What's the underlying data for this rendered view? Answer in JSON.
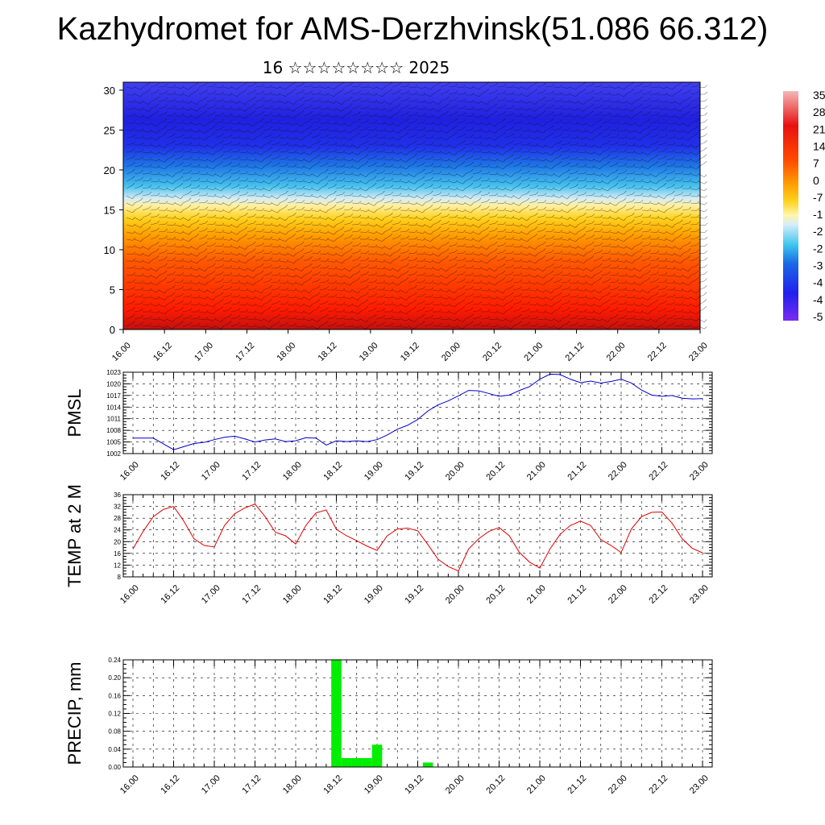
{
  "title": "Kazhydromet for AMS-Derzhvinsk(51.086 66.312)",
  "subtitle": "16 ☆☆☆☆☆☆☆☆ 2025",
  "colors": {
    "pmsl_line": "#0000cc",
    "temp_line": "#e00000",
    "precip_bar": "#00ee00"
  },
  "chart_data": [
    {
      "id": "cross_section",
      "type": "heatmap",
      "description_axes": "time vs height",
      "x_ticks": [
        "16.00",
        "16.12",
        "17.00",
        "17.12",
        "18.00",
        "18.12",
        "19.00",
        "19.12",
        "20.00",
        "20.12",
        "21.00",
        "21.12",
        "22.00",
        "22.12",
        "23.00"
      ],
      "y_ticks": [
        "0",
        "5",
        "10",
        "15",
        "20",
        "25",
        "30"
      ],
      "ylim": [
        0,
        31
      ],
      "colorbar_labels": [
        "35",
        "28",
        "21",
        "14",
        "7",
        "0",
        "-7",
        "-1",
        "-2",
        "-2",
        "-3",
        "-4",
        "-4",
        "-5"
      ],
      "overlay": "wind barbs"
    },
    {
      "id": "pmsl",
      "type": "line",
      "ylabel": "PMSL",
      "x_ticks": [
        "16.00",
        "16.12",
        "17.00",
        "17.12",
        "18.00",
        "18.12",
        "19.00",
        "19.12",
        "20.00",
        "20.12",
        "21.00",
        "21.12",
        "22.00",
        "22.12",
        "23.00"
      ],
      "y_ticks": [
        "1002",
        "1005",
        "1008",
        "1011",
        "1014",
        "1017",
        "1020",
        "1023"
      ],
      "ylim": [
        1002,
        1023
      ],
      "x": [
        0,
        3,
        6,
        9,
        12,
        15,
        18,
        21,
        24,
        27,
        30,
        33,
        36,
        39,
        42,
        45,
        48,
        51,
        54,
        57,
        60,
        63,
        66,
        69,
        72,
        75,
        78,
        81,
        84,
        87,
        90,
        93,
        96,
        99,
        102,
        105,
        108,
        111,
        114,
        117,
        120,
        123,
        126,
        129,
        132,
        135,
        138,
        141,
        144,
        147,
        150,
        153,
        156,
        159,
        162,
        165,
        168
      ],
      "values": [
        1006,
        1006,
        1006,
        1004.5,
        1003,
        1003.8,
        1004.6,
        1004.9,
        1005.6,
        1006.2,
        1006.5,
        1005.8,
        1005,
        1005.5,
        1005.8,
        1005.1,
        1005.3,
        1006.1,
        1006,
        1004.2,
        1005.3,
        1005.1,
        1005.3,
        1005.1,
        1005.6,
        1006.8,
        1008.3,
        1009.3,
        1010.8,
        1013,
        1014.6,
        1015.6,
        1016.9,
        1018.3,
        1018.2,
        1017.5,
        1016.8,
        1017.1,
        1018.3,
        1019.3,
        1021.2,
        1022.5,
        1022.4,
        1021.2,
        1020.3,
        1020.7,
        1020.2,
        1020.6,
        1021.2,
        1020.2,
        1018.4,
        1017.1,
        1016.8,
        1017,
        1016.3,
        1016.1,
        1016.2
      ]
    },
    {
      "id": "temp",
      "type": "line",
      "ylabel": "TEMP at 2 M",
      "x_ticks": [
        "16.00",
        "16.12",
        "17.00",
        "17.12",
        "18.00",
        "18.12",
        "19.00",
        "19.12",
        "20.00",
        "20.12",
        "21.00",
        "21.12",
        "22.00",
        "22.12",
        "23.00"
      ],
      "y_ticks": [
        "8",
        "12",
        "16",
        "20",
        "24",
        "28",
        "32",
        "36"
      ],
      "ylim": [
        8,
        36
      ],
      "x": [
        0,
        3,
        6,
        9,
        12,
        15,
        18,
        21,
        24,
        27,
        30,
        33,
        36,
        39,
        42,
        45,
        48,
        51,
        54,
        57,
        60,
        63,
        66,
        69,
        72,
        75,
        78,
        81,
        84,
        87,
        90,
        93,
        96,
        99,
        102,
        105,
        108,
        111,
        114,
        117,
        120,
        123,
        126,
        129,
        132,
        135,
        138,
        141,
        144,
        147,
        150,
        153,
        156,
        159,
        162,
        165,
        168
      ],
      "values": [
        17.5,
        23.5,
        28.5,
        31,
        32,
        27,
        21,
        18.7,
        18.2,
        25.5,
        29.5,
        31.5,
        32.8,
        28.5,
        23.2,
        22,
        19.2,
        25.5,
        29.8,
        30.8,
        24.2,
        22,
        20.3,
        18.5,
        17,
        22,
        24.3,
        24.6,
        23.7,
        19,
        14,
        11.5,
        10,
        17.5,
        21,
        23.5,
        24.8,
        22,
        16.3,
        13,
        11,
        17.5,
        22.5,
        25.5,
        27,
        25.5,
        20.7,
        18.7,
        16.3,
        24.3,
        28.5,
        30,
        30.1,
        26.3,
        21,
        17.7,
        16.2
      ]
    },
    {
      "id": "precip",
      "type": "bar",
      "ylabel": "PRECIP, mm",
      "x_ticks": [
        "16.00",
        "16.12",
        "17.00",
        "17.12",
        "18.00",
        "18.12",
        "19.00",
        "19.12",
        "20.00",
        "20.12",
        "21.00",
        "21.12",
        "22.00",
        "22.12",
        "23.00"
      ],
      "y_ticks": [
        "0.00",
        "0.04",
        "0.08",
        "0.12",
        "0.16",
        "0.20",
        "0.24"
      ],
      "ylim": [
        0,
        0.24
      ],
      "x": [
        60,
        63,
        66,
        69,
        72,
        75,
        78,
        81,
        84,
        87
      ],
      "values": [
        0.24,
        0.02,
        0.02,
        0.02,
        0.05,
        0,
        0,
        0,
        0,
        0.01
      ]
    }
  ]
}
